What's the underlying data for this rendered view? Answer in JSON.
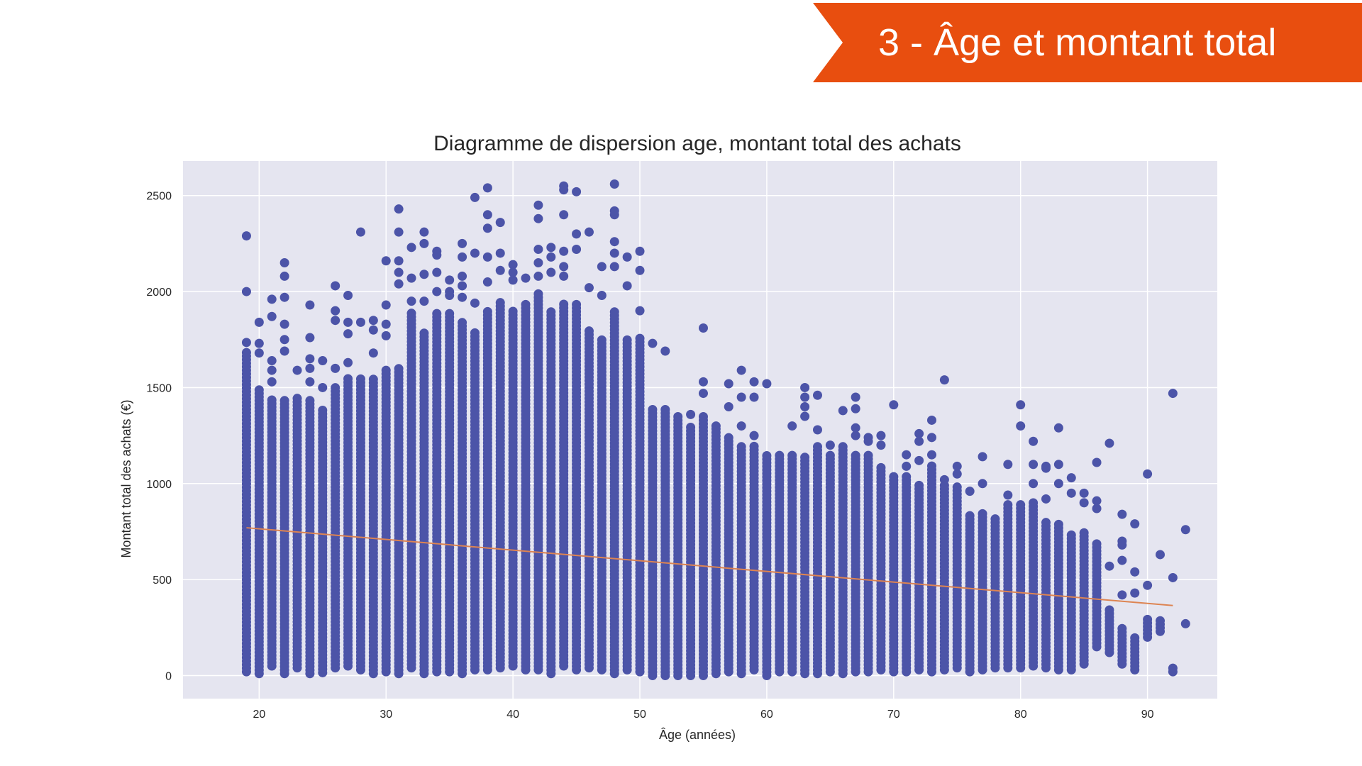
{
  "slide": {
    "banner_title": "3 - Âge et montant total",
    "banner_color": "#e84e0f"
  },
  "chart_data": {
    "type": "scatter",
    "title": "Diagramme de dispersion age, montant total des achats",
    "xlabel": "Âge (années)",
    "ylabel": "Montant total des achats (€)",
    "xlim": [
      14,
      95.5
    ],
    "ylim": [
      -120,
      2680
    ],
    "xticks": [
      20,
      30,
      40,
      50,
      60,
      70,
      80,
      90
    ],
    "yticks": [
      0,
      500,
      1000,
      1500,
      2000,
      2500
    ],
    "grid": true,
    "legend": "none",
    "point_color": "#4c54a8",
    "background_color": "#e5e5f0",
    "line_color": "#dd8452",
    "columns": [
      {
        "age": 19,
        "min": 20,
        "max": 1700,
        "outliers": [
          2290,
          2000,
          1735
        ]
      },
      {
        "age": 20,
        "min": 10,
        "max": 1500,
        "outliers": [
          1840,
          1730,
          1680
        ]
      },
      {
        "age": 21,
        "min": 50,
        "max": 1450,
        "outliers": [
          1960,
          1870,
          1640,
          1590,
          1530
        ]
      },
      {
        "age": 22,
        "min": 10,
        "max": 1450,
        "outliers": [
          2150,
          2080,
          1970,
          1830,
          1750,
          1690
        ]
      },
      {
        "age": 23,
        "min": 40,
        "max": 1450,
        "outliers": [
          1590
        ]
      },
      {
        "age": 24,
        "min": 10,
        "max": 1450,
        "outliers": [
          1930,
          1760,
          1650,
          1600,
          1530
        ]
      },
      {
        "age": 25,
        "min": 15,
        "max": 1400,
        "outliers": [
          1640,
          1500
        ]
      },
      {
        "age": 26,
        "min": 40,
        "max": 1500,
        "outliers": [
          2030,
          1900,
          1850,
          1600
        ]
      },
      {
        "age": 27,
        "min": 50,
        "max": 1550,
        "outliers": [
          1980,
          1840,
          1780,
          1630
        ]
      },
      {
        "age": 28,
        "min": 30,
        "max": 1550,
        "outliers": [
          2310,
          1840
        ]
      },
      {
        "age": 29,
        "min": 10,
        "max": 1550,
        "outliers": [
          1850,
          1800,
          1680
        ]
      },
      {
        "age": 30,
        "min": 20,
        "max": 1600,
        "outliers": [
          2160,
          1930,
          1830,
          1770
        ]
      },
      {
        "age": 31,
        "min": 10,
        "max": 1600,
        "outliers": [
          2430,
          2310,
          2160,
          2100,
          2040
        ]
      },
      {
        "age": 32,
        "min": 40,
        "max": 1900,
        "outliers": [
          2230,
          2070,
          1950
        ]
      },
      {
        "age": 33,
        "min": 10,
        "max": 1800,
        "outliers": [
          2310,
          2250,
          2090,
          1950
        ]
      },
      {
        "age": 34,
        "min": 20,
        "max": 1900,
        "outliers": [
          2210,
          2190,
          2100,
          2000
        ]
      },
      {
        "age": 35,
        "min": 20,
        "max": 1900,
        "outliers": [
          2060,
          2000,
          1980
        ]
      },
      {
        "age": 36,
        "min": 10,
        "max": 1850,
        "outliers": [
          2250,
          2180,
          2080,
          2030,
          1970
        ]
      },
      {
        "age": 37,
        "min": 30,
        "max": 1800,
        "outliers": [
          2490,
          2200,
          1940
        ]
      },
      {
        "age": 38,
        "min": 30,
        "max": 1900,
        "outliers": [
          2540,
          2400,
          2330,
          2180,
          2050
        ]
      },
      {
        "age": 39,
        "min": 40,
        "max": 1950,
        "outliers": [
          2360,
          2200,
          2110
        ]
      },
      {
        "age": 40,
        "min": 50,
        "max": 1900,
        "outliers": [
          2140,
          2100,
          2060
        ]
      },
      {
        "age": 41,
        "min": 30,
        "max": 1950,
        "outliers": [
          2070
        ]
      },
      {
        "age": 42,
        "min": 30,
        "max": 2000,
        "outliers": [
          2450,
          2380,
          2220,
          2150,
          2080
        ]
      },
      {
        "age": 43,
        "min": 10,
        "max": 1900,
        "outliers": [
          2230,
          2180,
          2100
        ]
      },
      {
        "age": 44,
        "min": 50,
        "max": 1950,
        "outliers": [
          2550,
          2530,
          2400,
          2210,
          2130,
          2080
        ]
      },
      {
        "age": 45,
        "min": 30,
        "max": 1950,
        "outliers": [
          2520,
          2300,
          2220
        ]
      },
      {
        "age": 46,
        "min": 40,
        "max": 1800,
        "outliers": [
          2310,
          2020
        ]
      },
      {
        "age": 47,
        "min": 30,
        "max": 1750,
        "outliers": [
          2130,
          1980
        ]
      },
      {
        "age": 48,
        "min": 10,
        "max": 1900,
        "outliers": [
          2560,
          2420,
          2400,
          2260,
          2200,
          2130
        ]
      },
      {
        "age": 49,
        "min": 30,
        "max": 1750,
        "outliers": [
          2180,
          2030
        ]
      },
      {
        "age": 50,
        "min": 20,
        "max": 1760,
        "outliers": [
          2210,
          2110,
          1900
        ]
      },
      {
        "age": 51,
        "min": 0,
        "max": 1400,
        "outliers": [
          1730
        ]
      },
      {
        "age": 52,
        "min": 0,
        "max": 1400,
        "outliers": [
          1690
        ]
      },
      {
        "age": 53,
        "min": 0,
        "max": 1350,
        "outliers": []
      },
      {
        "age": 54,
        "min": 0,
        "max": 1300,
        "outliers": [
          1360
        ]
      },
      {
        "age": 55,
        "min": 0,
        "max": 1350,
        "outliers": [
          1810,
          1530,
          1470
        ]
      },
      {
        "age": 56,
        "min": 10,
        "max": 1300,
        "outliers": [
          1300
        ]
      },
      {
        "age": 57,
        "min": 20,
        "max": 1250,
        "outliers": [
          1520,
          1400
        ]
      },
      {
        "age": 58,
        "min": 10,
        "max": 1200,
        "outliers": [
          1590,
          1450,
          1300
        ]
      },
      {
        "age": 59,
        "min": 30,
        "max": 1200,
        "outliers": [
          1530,
          1450,
          1250
        ]
      },
      {
        "age": 60,
        "min": 0,
        "max": 1150,
        "outliers": [
          1520
        ]
      },
      {
        "age": 61,
        "min": 20,
        "max": 1150,
        "outliers": []
      },
      {
        "age": 62,
        "min": 20,
        "max": 1150,
        "outliers": [
          1300
        ]
      },
      {
        "age": 63,
        "min": 10,
        "max": 1150,
        "outliers": [
          1500,
          1450,
          1400,
          1350
        ]
      },
      {
        "age": 64,
        "min": 10,
        "max": 1200,
        "outliers": [
          1460,
          1280
        ]
      },
      {
        "age": 65,
        "min": 20,
        "max": 1150,
        "outliers": [
          1200
        ]
      },
      {
        "age": 66,
        "min": 10,
        "max": 1200,
        "outliers": [
          1380
        ]
      },
      {
        "age": 67,
        "min": 20,
        "max": 1150,
        "outliers": [
          1450,
          1390,
          1290,
          1250
        ]
      },
      {
        "age": 68,
        "min": 20,
        "max": 1150,
        "outliers": [
          1240,
          1220
        ]
      },
      {
        "age": 69,
        "min": 30,
        "max": 1100,
        "outliers": [
          1250,
          1200
        ]
      },
      {
        "age": 70,
        "min": 20,
        "max": 1050,
        "outliers": [
          1410
        ]
      },
      {
        "age": 71,
        "min": 20,
        "max": 1050,
        "outliers": [
          1150,
          1090
        ]
      },
      {
        "age": 72,
        "min": 30,
        "max": 1000,
        "outliers": [
          1260,
          1220,
          1120
        ]
      },
      {
        "age": 73,
        "min": 20,
        "max": 1100,
        "outliers": [
          1330,
          1240,
          1150
        ]
      },
      {
        "age": 74,
        "min": 30,
        "max": 1000,
        "outliers": [
          1540,
          1020
        ]
      },
      {
        "age": 75,
        "min": 40,
        "max": 1000,
        "outliers": [
          1090,
          1050
        ]
      },
      {
        "age": 76,
        "min": 20,
        "max": 850,
        "outliers": [
          960
        ]
      },
      {
        "age": 77,
        "min": 30,
        "max": 850,
        "outliers": [
          1140,
          1000
        ]
      },
      {
        "age": 78,
        "min": 40,
        "max": 820,
        "outliers": []
      },
      {
        "age": 79,
        "min": 40,
        "max": 900,
        "outliers": [
          1100,
          940
        ]
      },
      {
        "age": 80,
        "min": 40,
        "max": 900,
        "outliers": [
          1410,
          1300
        ]
      },
      {
        "age": 81,
        "min": 50,
        "max": 900,
        "outliers": [
          1220,
          1100,
          1000
        ]
      },
      {
        "age": 82,
        "min": 40,
        "max": 800,
        "outliers": [
          1090,
          1080,
          920
        ]
      },
      {
        "age": 83,
        "min": 30,
        "max": 800,
        "outliers": [
          1290,
          1100,
          1000
        ]
      },
      {
        "age": 84,
        "min": 30,
        "max": 750,
        "outliers": [
          1030,
          950
        ]
      },
      {
        "age": 85,
        "min": 60,
        "max": 750,
        "outliers": [
          950,
          900
        ]
      },
      {
        "age": 86,
        "min": 150,
        "max": 700,
        "outliers": [
          1110,
          910,
          870
        ]
      },
      {
        "age": 87,
        "min": 120,
        "max": 350,
        "outliers": [
          1210,
          570
        ]
      },
      {
        "age": 88,
        "min": 60,
        "max": 250,
        "outliers": [
          840,
          700,
          680,
          600,
          420
        ]
      },
      {
        "age": 89,
        "min": 30,
        "max": 200,
        "outliers": [
          790,
          540,
          430
        ]
      },
      {
        "age": 90,
        "min": 200,
        "max": 300,
        "outliers": [
          1050,
          470
        ]
      },
      {
        "age": 91,
        "min": 230,
        "max": 300,
        "outliers": [
          630
        ]
      },
      {
        "age": 92,
        "min": 20,
        "max": 50,
        "outliers": [
          1470,
          510
        ]
      },
      {
        "age": 93,
        "min": 270,
        "max": 270,
        "outliers": [
          760
        ]
      }
    ],
    "regression_line": {
      "x": [
        19,
        92
      ],
      "y": [
        770,
        365
      ]
    }
  }
}
